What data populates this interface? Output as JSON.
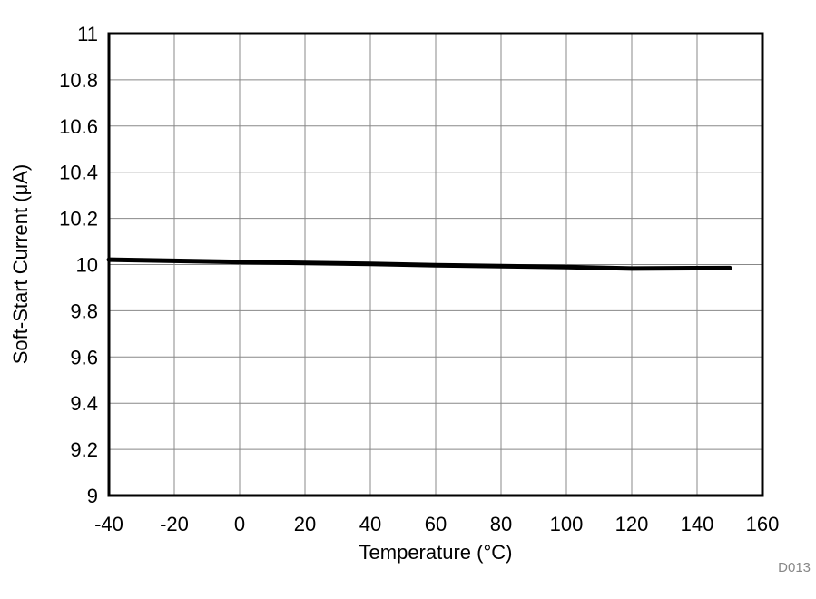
{
  "chart_data": {
    "type": "line",
    "xlabel": "Temperature (°C)",
    "ylabel": "Soft-Start Current (μA)",
    "xlim": [
      -40,
      160
    ],
    "ylim": [
      9,
      11
    ],
    "xticks": [
      -40,
      -20,
      0,
      20,
      40,
      60,
      80,
      100,
      120,
      140,
      160
    ],
    "yticks": [
      9,
      9.2,
      9.4,
      9.6,
      9.8,
      10,
      10.2,
      10.4,
      10.6,
      10.8,
      11
    ],
    "grid": true,
    "series": [
      {
        "x": [
          -40,
          0,
          40,
          60,
          100,
          120,
          150
        ],
        "y": [
          10.021,
          10.011,
          10.003,
          9.997,
          9.989,
          9.983,
          9.985
        ],
        "color": "#000000"
      }
    ],
    "annotation": "D013"
  }
}
